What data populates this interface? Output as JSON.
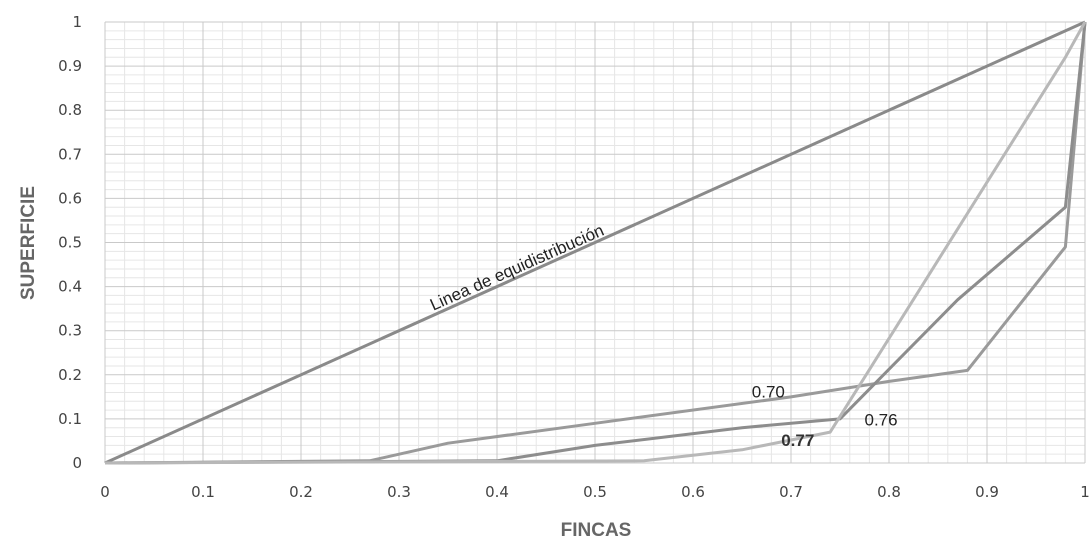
{
  "chart_data": {
    "type": "line",
    "xlabel": "FINCAS",
    "ylabel": "SUPERFICIE",
    "xlim": [
      0,
      1
    ],
    "ylim": [
      0,
      1
    ],
    "x_ticks": [
      "0",
      "0.1",
      "0.2",
      "0.3",
      "0.4",
      "0.5",
      "0.6",
      "0.7",
      "0.8",
      "0.9",
      "1"
    ],
    "y_ticks": [
      "0",
      "0.1",
      "0.2",
      "0.3",
      "0.4",
      "0.5",
      "0.6",
      "0.7",
      "0.8",
      "0.9",
      "1"
    ],
    "grid": true,
    "series": [
      {
        "color": "#8a8a8a",
        "points": [
          [
            0,
            0
          ],
          [
            1,
            1
          ]
        ]
      },
      {
        "color": "#9a9a9a",
        "points": [
          [
            0,
            0
          ],
          [
            0.27,
            0.005
          ],
          [
            0.35,
            0.045
          ],
          [
            0.5,
            0.09
          ],
          [
            0.7,
            0.15
          ],
          [
            0.8,
            0.185
          ],
          [
            0.88,
            0.21
          ],
          [
            0.98,
            0.49
          ],
          [
            1,
            1
          ]
        ]
      },
      {
        "color": "#8d8d8d",
        "points": [
          [
            0,
            0
          ],
          [
            0.4,
            0.005
          ],
          [
            0.5,
            0.04
          ],
          [
            0.65,
            0.08
          ],
          [
            0.75,
            0.1
          ],
          [
            0.87,
            0.37
          ],
          [
            0.98,
            0.58
          ],
          [
            1,
            1
          ]
        ]
      },
      {
        "color": "#b8b8b8",
        "points": [
          [
            0,
            0
          ],
          [
            0.55,
            0.005
          ],
          [
            0.65,
            0.03
          ],
          [
            0.74,
            0.07
          ],
          [
            0.98,
            0.92
          ],
          [
            1,
            1
          ]
        ]
      }
    ],
    "annotations": [
      {
        "text": "Linea de equidistribución",
        "x": 0.335,
        "y": 0.345,
        "angle": -24,
        "style": "normal"
      },
      {
        "text": "0.70",
        "x": 0.66,
        "y": 0.148,
        "angle": 0,
        "style": "normal"
      },
      {
        "text": "0.76",
        "x": 0.775,
        "y": 0.085,
        "angle": 0,
        "style": "normal"
      },
      {
        "text": "0.77",
        "x": 0.69,
        "y": 0.038,
        "angle": 0,
        "style": "bold"
      }
    ]
  }
}
